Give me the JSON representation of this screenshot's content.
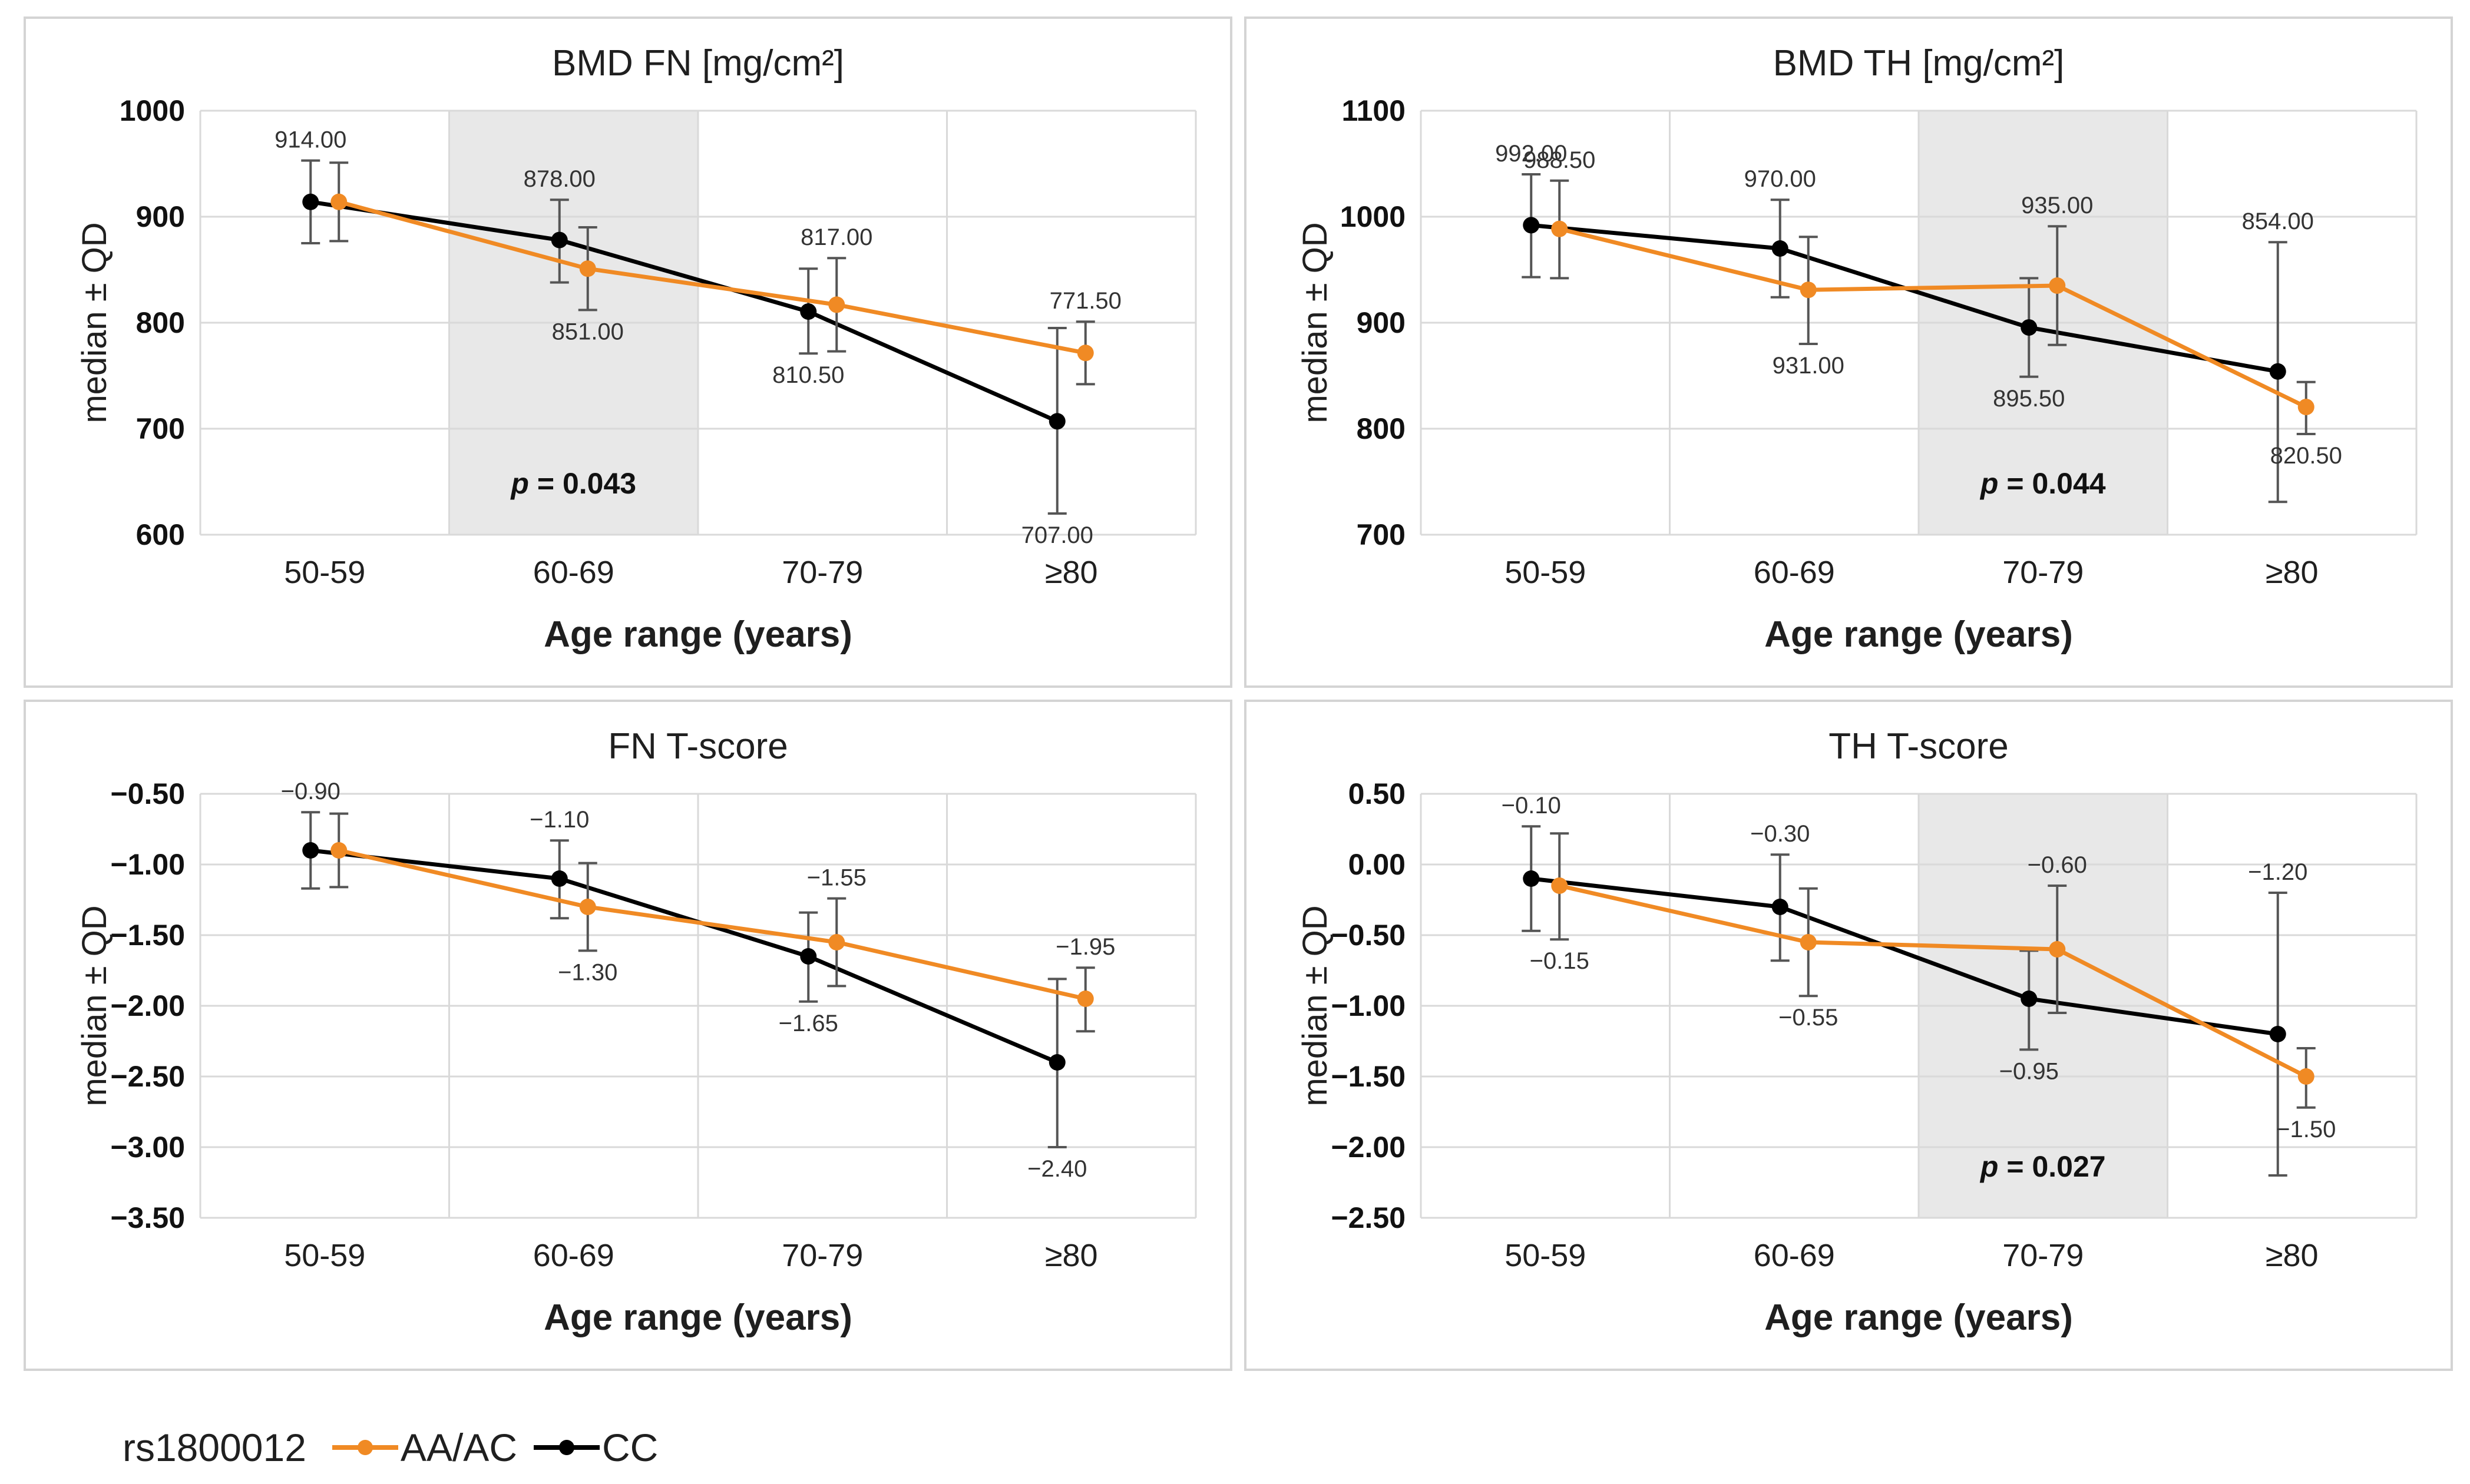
{
  "legend": {
    "title": "rs1800012",
    "series": [
      {
        "name": "AA/AC",
        "color": "#f08a24"
      },
      {
        "name": "CC",
        "color": "#000000"
      }
    ]
  },
  "colors": {
    "shade": "#e8e8e8",
    "grid": "#d9d9d9",
    "errorbar": "#555555"
  },
  "chart_data": [
    {
      "type": "line",
      "title": "BMD FN [mg/cm²]",
      "xlabel": "Age range (years)",
      "ylabel": "median ± QD",
      "categories": [
        "50-59",
        "60-69",
        "70-79",
        "≥80"
      ],
      "ylim": [
        600,
        1000
      ],
      "yticks": [
        600,
        700,
        800,
        900,
        1000
      ],
      "ytick_labels": [
        "600",
        "700",
        "800",
        "900",
        "1000"
      ],
      "shaded_category": "60-69",
      "p_value": {
        "label": "p",
        "text": " = 0.043",
        "vertical": "bottom"
      },
      "series": [
        {
          "name": "CC",
          "color": "#000000",
          "values": [
            914.0,
            878.0,
            810.5,
            707.0
          ],
          "err_low": [
            875,
            838,
            771,
            620
          ],
          "err_high": [
            953,
            916,
            851,
            795
          ],
          "labels": [
            "914.00",
            "878.00",
            "810.50",
            "707.00"
          ],
          "label_pos": [
            "above",
            "above",
            "below",
            "below"
          ]
        },
        {
          "name": "AA/AC",
          "color": "#f08a24",
          "values": [
            914.0,
            851.0,
            817.0,
            771.5
          ],
          "err_low": [
            877,
            812,
            773,
            742
          ],
          "err_high": [
            951,
            890,
            861,
            801
          ],
          "labels": [
            "",
            "851.00",
            "817.00",
            "771.50"
          ],
          "label_pos": [
            "above",
            "below",
            "above",
            "above"
          ]
        }
      ]
    },
    {
      "type": "line",
      "title": "BMD TH [mg/cm²]",
      "xlabel": "Age range (years)",
      "ylabel": "median ± QD",
      "categories": [
        "50-59",
        "60-69",
        "70-79",
        "≥80"
      ],
      "ylim": [
        700,
        1100
      ],
      "yticks": [
        700,
        800,
        900,
        1000,
        1100
      ],
      "ytick_labels": [
        "700",
        "800",
        "900",
        "1000",
        "1100"
      ],
      "shaded_category": "70-79",
      "p_value": {
        "label": "p",
        "text": " = 0.044",
        "vertical": "bottom"
      },
      "series": [
        {
          "name": "CC",
          "color": "#000000",
          "values": [
            992.0,
            970.0,
            895.5,
            854.0
          ],
          "err_low": [
            943,
            924,
            849,
            731
          ],
          "err_high": [
            1040,
            1016,
            942,
            976
          ],
          "labels": [
            "992.00",
            "970.00",
            "895.50",
            "854.00"
          ],
          "label_pos": [
            "above",
            "above",
            "below",
            "above"
          ]
        },
        {
          "name": "AA/AC",
          "color": "#f08a24",
          "values": [
            988.5,
            931.0,
            935.0,
            820.5
          ],
          "err_low": [
            942,
            880,
            879,
            795
          ],
          "err_high": [
            1034,
            981,
            991,
            844
          ],
          "labels": [
            "988.50",
            "931.00",
            "935.00",
            "820.50"
          ],
          "label_pos": [
            "above",
            "below",
            "above",
            "below"
          ]
        }
      ]
    },
    {
      "type": "line",
      "title": "FN T-score",
      "xlabel": "Age range (years)",
      "ylabel": "median ± QD",
      "categories": [
        "50-59",
        "60-69",
        "70-79",
        "≥80"
      ],
      "ylim": [
        -3.5,
        -0.5
      ],
      "yticks": [
        -3.5,
        -3.0,
        -2.5,
        -2.0,
        -1.5,
        -1.0,
        -0.5
      ],
      "ytick_labels": [
        "−3.50",
        "−3.00",
        "−2.50",
        "−2.00",
        "−1.50",
        "−1.00",
        "−0.50"
      ],
      "shaded_category": null,
      "p_value": null,
      "series": [
        {
          "name": "CC",
          "color": "#000000",
          "values": [
            -0.9,
            -1.1,
            -1.65,
            -2.4
          ],
          "err_low": [
            -1.17,
            -1.38,
            -1.97,
            -3.0
          ],
          "err_high": [
            -0.63,
            -0.83,
            -1.34,
            -1.81
          ],
          "labels": [
            "−0.90",
            "−1.10",
            "−1.65",
            "−2.40"
          ],
          "label_pos": [
            "above",
            "above",
            "below",
            "below"
          ]
        },
        {
          "name": "AA/AC",
          "color": "#f08a24",
          "values": [
            -0.9,
            -1.3,
            -1.55,
            -1.95
          ],
          "err_low": [
            -1.16,
            -1.61,
            -1.86,
            -2.18
          ],
          "err_high": [
            -0.64,
            -0.99,
            -1.24,
            -1.73
          ],
          "labels": [
            "",
            "−1.30",
            "−1.55",
            "−1.95"
          ],
          "label_pos": [
            "above",
            "below",
            "above",
            "above"
          ]
        }
      ]
    },
    {
      "type": "line",
      "title": "TH T-score",
      "xlabel": "Age range (years)",
      "ylabel": "median ± QD",
      "categories": [
        "50-59",
        "60-69",
        "70-79",
        "≥80"
      ],
      "ylim": [
        -2.5,
        0.5
      ],
      "yticks": [
        -2.5,
        -2.0,
        -1.5,
        -1.0,
        -0.5,
        0.0,
        0.5
      ],
      "ytick_labels": [
        "−2.50",
        "−2.00",
        "−1.50",
        "−1.00",
        "−0.50",
        "0.00",
        "0.50"
      ],
      "shaded_category": "70-79",
      "p_value": {
        "label": "p",
        "text": " = 0.027",
        "vertical": "bottom"
      },
      "series": [
        {
          "name": "CC",
          "color": "#000000",
          "values": [
            -0.1,
            -0.3,
            -0.95,
            -1.2
          ],
          "err_low": [
            -0.47,
            -0.68,
            -1.31,
            -2.2
          ],
          "err_high": [
            0.27,
            0.07,
            -0.61,
            -0.2
          ],
          "labels": [
            "−0.10",
            "−0.30",
            "−0.95",
            "−1.20"
          ],
          "label_pos": [
            "above",
            "above",
            "below",
            "above"
          ]
        },
        {
          "name": "AA/AC",
          "color": "#f08a24",
          "values": [
            -0.15,
            -0.55,
            -0.6,
            -1.5
          ],
          "err_low": [
            -0.53,
            -0.93,
            -1.05,
            -1.72
          ],
          "err_high": [
            0.22,
            -0.17,
            -0.15,
            -1.3
          ],
          "labels": [
            "−0.15",
            "−0.55",
            "−0.60",
            "−1.50"
          ],
          "label_pos": [
            "below",
            "below",
            "above",
            "below"
          ]
        }
      ]
    }
  ]
}
